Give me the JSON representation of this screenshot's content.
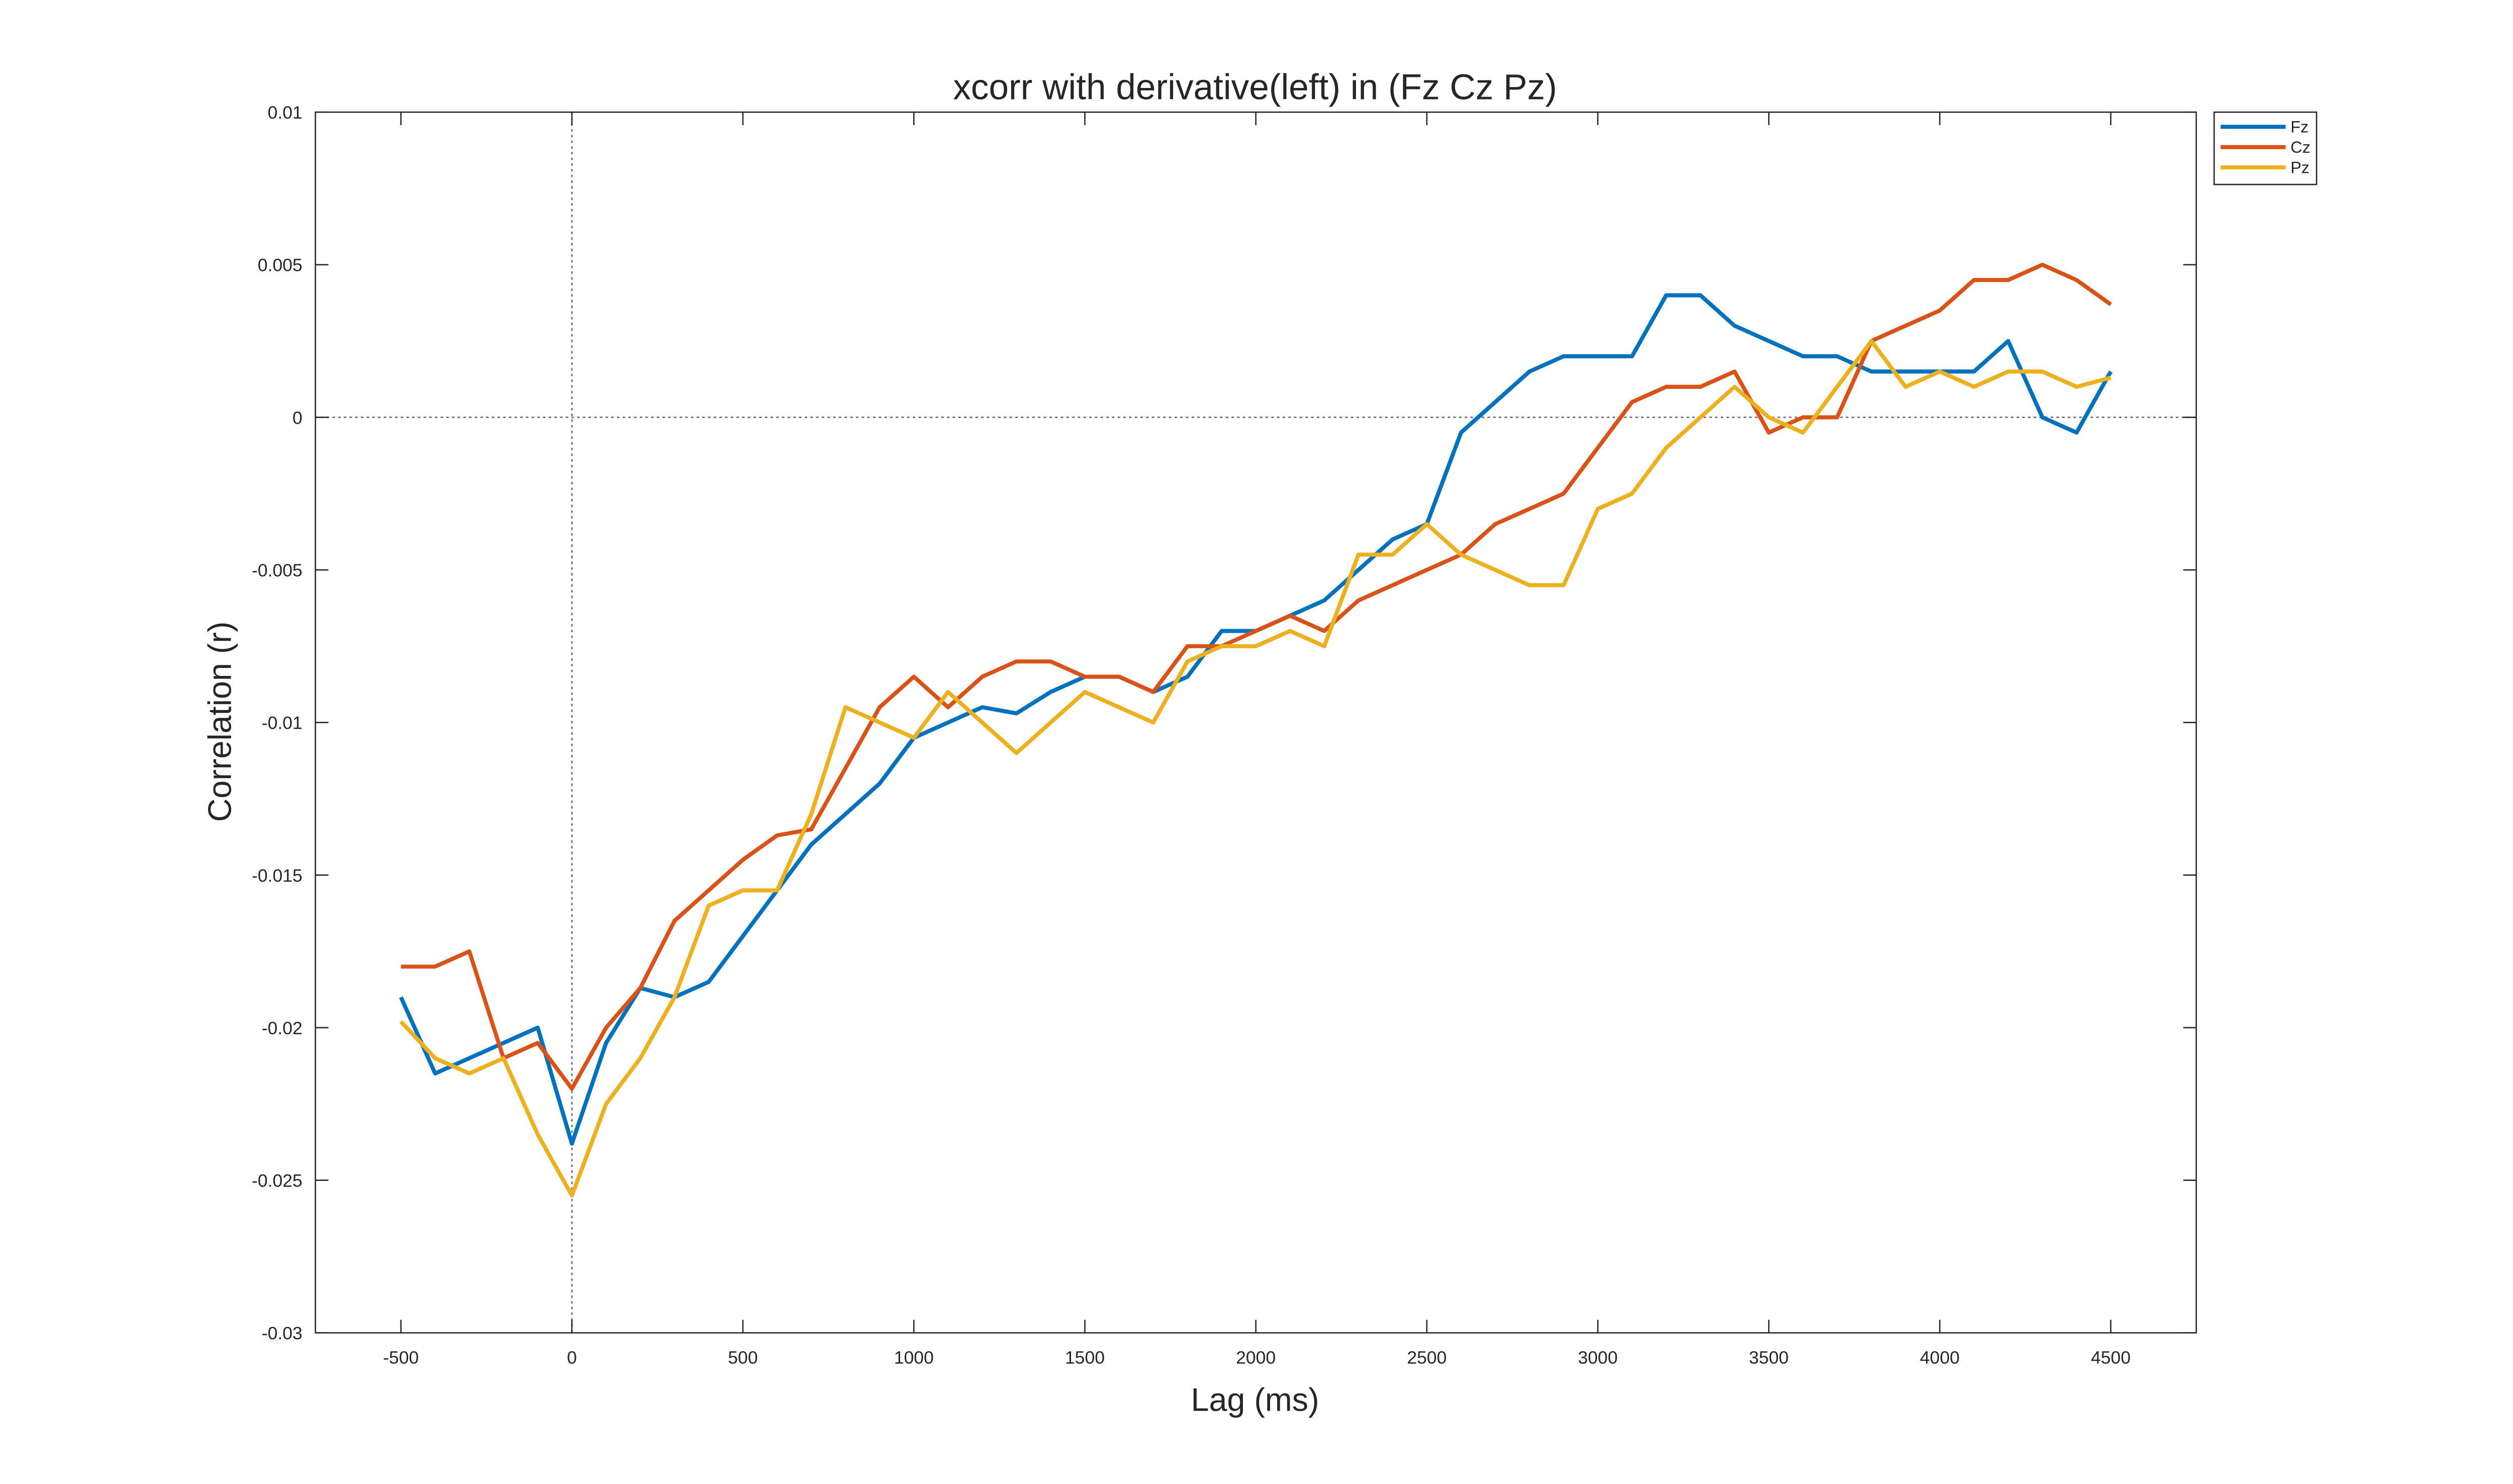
{
  "chart_data": {
    "type": "line",
    "title": "xcorr with derivative(left) in (Fz Cz Pz)",
    "xlabel": "Lag (ms)",
    "ylabel": "Correlation (r)",
    "x": [
      -500,
      -400,
      -300,
      -200,
      -100,
      0,
      100,
      200,
      300,
      400,
      500,
      600,
      700,
      800,
      900,
      1000,
      1100,
      1200,
      1300,
      1400,
      1500,
      1600,
      1700,
      1800,
      1900,
      2000,
      2100,
      2200,
      2300,
      2400,
      2500,
      2600,
      2700,
      2800,
      2900,
      3000,
      3100,
      3200,
      3300,
      3400,
      3500,
      3600,
      3700,
      3800,
      3900,
      4000,
      4100,
      4200,
      4300,
      4400,
      4500
    ],
    "series": [
      {
        "name": "Fz",
        "color": "#0072BD",
        "values": [
          -0.019,
          -0.0215,
          -0.021,
          -0.0205,
          -0.02,
          -0.0238,
          -0.0205,
          -0.0187,
          -0.019,
          -0.0185,
          -0.017,
          -0.0155,
          -0.014,
          -0.013,
          -0.012,
          -0.0105,
          -0.01,
          -0.0095,
          -0.0097,
          -0.009,
          -0.0085,
          -0.0085,
          -0.009,
          -0.0085,
          -0.007,
          -0.007,
          -0.0065,
          -0.006,
          -0.005,
          -0.004,
          -0.0035,
          -0.0005,
          0.0005,
          0.0015,
          0.002,
          0.002,
          0.002,
          0.004,
          0.004,
          0.003,
          0.0025,
          0.002,
          0.002,
          0.0015,
          0.0015,
          0.0015,
          0.0015,
          0.0025,
          0,
          -0.0005,
          0.0015
        ]
      },
      {
        "name": "Cz",
        "color": "#D95319",
        "values": [
          -0.018,
          -0.018,
          -0.0175,
          -0.021,
          -0.0205,
          -0.022,
          -0.02,
          -0.0187,
          -0.0165,
          -0.0155,
          -0.0145,
          -0.0137,
          -0.0135,
          -0.0115,
          -0.0095,
          -0.0085,
          -0.0095,
          -0.0085,
          -0.008,
          -0.008,
          -0.0085,
          -0.0085,
          -0.009,
          -0.0075,
          -0.0075,
          -0.007,
          -0.0065,
          -0.007,
          -0.006,
          -0.0055,
          -0.005,
          -0.0045,
          -0.0035,
          -0.003,
          -0.0025,
          -0.001,
          0.0005,
          0.001,
          0.001,
          0.0015,
          -0.0005,
          0,
          0,
          0.0025,
          0.003,
          0.0035,
          0.0045,
          0.0045,
          0.005,
          0.0045,
          0.0037
        ]
      },
      {
        "name": "Pz",
        "color": "#EDB120",
        "values": [
          -0.0198,
          -0.021,
          -0.0215,
          -0.021,
          -0.0235,
          -0.0255,
          -0.0225,
          -0.021,
          -0.019,
          -0.016,
          -0.0155,
          -0.0155,
          -0.013,
          -0.0095,
          -0.01,
          -0.0105,
          -0.009,
          -0.01,
          -0.011,
          -0.01,
          -0.009,
          -0.0095,
          -0.01,
          -0.008,
          -0.0075,
          -0.0075,
          -0.007,
          -0.0075,
          -0.0045,
          -0.0045,
          -0.0035,
          -0.0045,
          -0.005,
          -0.0055,
          -0.0055,
          -0.003,
          -0.0025,
          -0.001,
          0,
          0.001,
          0,
          -0.0005,
          0.001,
          0.0025,
          0.001,
          0.0015,
          0.001,
          0.0015,
          0.0015,
          0.001,
          0.0013
        ]
      }
    ],
    "xlim": [
      -750,
      4750
    ],
    "ylim": [
      -0.03,
      0.01
    ],
    "xticks": [
      -500,
      0,
      500,
      1000,
      1500,
      2000,
      2500,
      3000,
      3500,
      4000,
      4500
    ],
    "yticks": [
      -0.03,
      -0.025,
      -0.02,
      -0.015,
      -0.01,
      -0.005,
      0,
      0.005,
      0.01
    ],
    "xline": 0,
    "yline": 0,
    "legend": "northeast-outside"
  }
}
